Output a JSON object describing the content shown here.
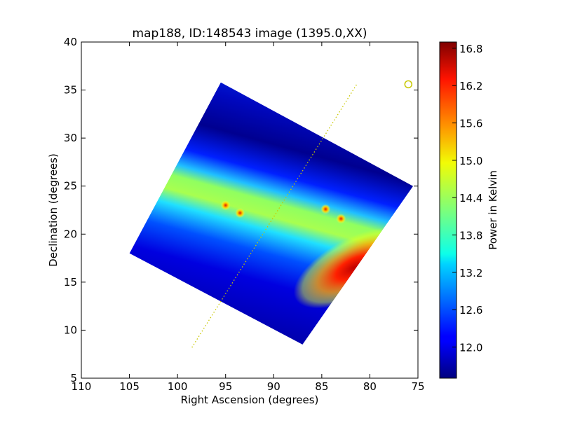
{
  "chart_data": {
    "type": "heatmap",
    "title": "map188, ID:148543 image (1395.0,XX)",
    "xlabel": "Right Ascension (degrees)",
    "ylabel": "Declination (degrees)",
    "xlim": [
      110,
      75
    ],
    "ylim": [
      5,
      40
    ],
    "xticks": [
      110,
      105,
      100,
      95,
      90,
      85,
      80,
      75
    ],
    "yticks": [
      5,
      10,
      15,
      20,
      25,
      30,
      35,
      40
    ],
    "grid": false,
    "map_corners": [
      [
        95.5,
        35.8
      ],
      [
        75.5,
        25.0
      ],
      [
        87.0,
        8.5
      ],
      [
        105.0,
        18.0
      ]
    ],
    "band_features": {
      "bright_band": "diagonal ridge from RA 103, Dec 27 to RA 80, Dec 19",
      "peak_region": {
        "ra": 82.0,
        "dec": 16.5,
        "value": 16.8
      },
      "cold_region": {
        "ra": 97.0,
        "dec": 31.0,
        "value": 11.6
      }
    },
    "hot_spots": [
      {
        "ra": 95.0,
        "dec": 23.0
      },
      {
        "ra": 93.5,
        "dec": 22.2
      },
      {
        "ra": 84.6,
        "dec": 22.6
      },
      {
        "ra": 83.0,
        "dec": 21.6
      }
    ],
    "marker": {
      "ra": 76.0,
      "dec": 35.6,
      "shape": "circle",
      "color": "#c8c800"
    },
    "track_line": {
      "start": [
        98.5,
        8.2
      ],
      "end": [
        81.3,
        35.7
      ],
      "style": "dotted",
      "color": "#c8c800"
    },
    "colorbar": {
      "label": "Power in Kelvin",
      "colormap": "jet",
      "vmin": 11.5,
      "vmax": 16.9,
      "ticks": [
        "12.0",
        "12.6",
        "13.2",
        "13.8",
        "14.4",
        "15.0",
        "15.6",
        "16.2",
        "16.8"
      ]
    }
  }
}
